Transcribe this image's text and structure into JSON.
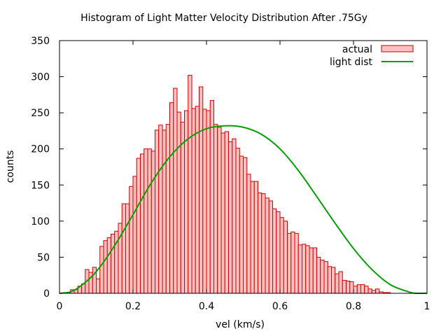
{
  "chart_data": {
    "type": "bar",
    "title": "Histogram of Light Matter Velocity Distribution After .75Gy",
    "xlabel": "vel (km/s)",
    "ylabel": "counts",
    "xlim": [
      0,
      1
    ],
    "ylim": [
      0,
      350
    ],
    "xticks": [
      "0",
      "0.2",
      "0.4",
      "0.6",
      "0.8",
      "1"
    ],
    "yticks": [
      "0",
      "50",
      "100",
      "150",
      "200",
      "250",
      "300",
      "350"
    ],
    "bin_width": 0.01,
    "legend": {
      "placement": "top-right"
    },
    "grid": false,
    "series": [
      {
        "name": "actual",
        "kind": "histogram",
        "color": "#cc0000",
        "fill": "#ffc0c0",
        "bin_starts": [
          0.01,
          0.02,
          0.03,
          0.04,
          0.05,
          0.06,
          0.07,
          0.08,
          0.09,
          0.1,
          0.11,
          0.12,
          0.13,
          0.14,
          0.15,
          0.16,
          0.17,
          0.18,
          0.19,
          0.2,
          0.21,
          0.22,
          0.23,
          0.24,
          0.25,
          0.26,
          0.27,
          0.28,
          0.29,
          0.3,
          0.31,
          0.32,
          0.33,
          0.34,
          0.35,
          0.36,
          0.37,
          0.38,
          0.39,
          0.4,
          0.41,
          0.42,
          0.43,
          0.44,
          0.45,
          0.46,
          0.47,
          0.48,
          0.49,
          0.5,
          0.51,
          0.52,
          0.53,
          0.54,
          0.55,
          0.56,
          0.57,
          0.58,
          0.59,
          0.6,
          0.61,
          0.62,
          0.63,
          0.64,
          0.65,
          0.66,
          0.67,
          0.68,
          0.69,
          0.7,
          0.71,
          0.72,
          0.73,
          0.74,
          0.75,
          0.76,
          0.77,
          0.78,
          0.79,
          0.8,
          0.81,
          0.82,
          0.83,
          0.84,
          0.85,
          0.86,
          0.87,
          0.88,
          0.89
        ],
        "values": [
          1,
          1,
          5,
          5,
          10,
          13,
          33,
          29,
          36,
          20,
          65,
          73,
          77,
          82,
          86,
          97,
          124,
          124,
          148,
          162,
          187,
          193,
          200,
          200,
          197,
          226,
          233,
          226,
          234,
          264,
          284,
          251,
          237,
          253,
          302,
          256,
          259,
          286,
          255,
          253,
          267,
          234,
          230,
          222,
          224,
          210,
          214,
          201,
          190,
          188,
          165,
          155,
          155,
          139,
          138,
          132,
          128,
          117,
          113,
          105,
          100,
          83,
          85,
          83,
          67,
          68,
          66,
          63,
          63,
          50,
          46,
          44,
          37,
          36,
          27,
          30,
          18,
          17,
          16,
          10,
          12,
          12,
          10,
          6,
          4,
          6,
          2,
          1,
          1
        ]
      },
      {
        "name": "light dist",
        "kind": "line",
        "color": "#00a000",
        "points": [
          [
            0.0,
            0
          ],
          [
            0.03,
            2
          ],
          [
            0.06,
            11
          ],
          [
            0.1,
            30
          ],
          [
            0.15,
            66
          ],
          [
            0.2,
            109
          ],
          [
            0.25,
            153
          ],
          [
            0.3,
            189
          ],
          [
            0.35,
            214
          ],
          [
            0.4,
            228
          ],
          [
            0.45,
            232
          ],
          [
            0.5,
            230
          ],
          [
            0.55,
            220
          ],
          [
            0.6,
            200
          ],
          [
            0.65,
            170
          ],
          [
            0.7,
            134
          ],
          [
            0.75,
            97
          ],
          [
            0.8,
            62
          ],
          [
            0.85,
            33
          ],
          [
            0.9,
            12
          ],
          [
            0.95,
            2
          ],
          [
            0.97,
            0
          ],
          [
            1.0,
            0
          ]
        ]
      }
    ]
  }
}
